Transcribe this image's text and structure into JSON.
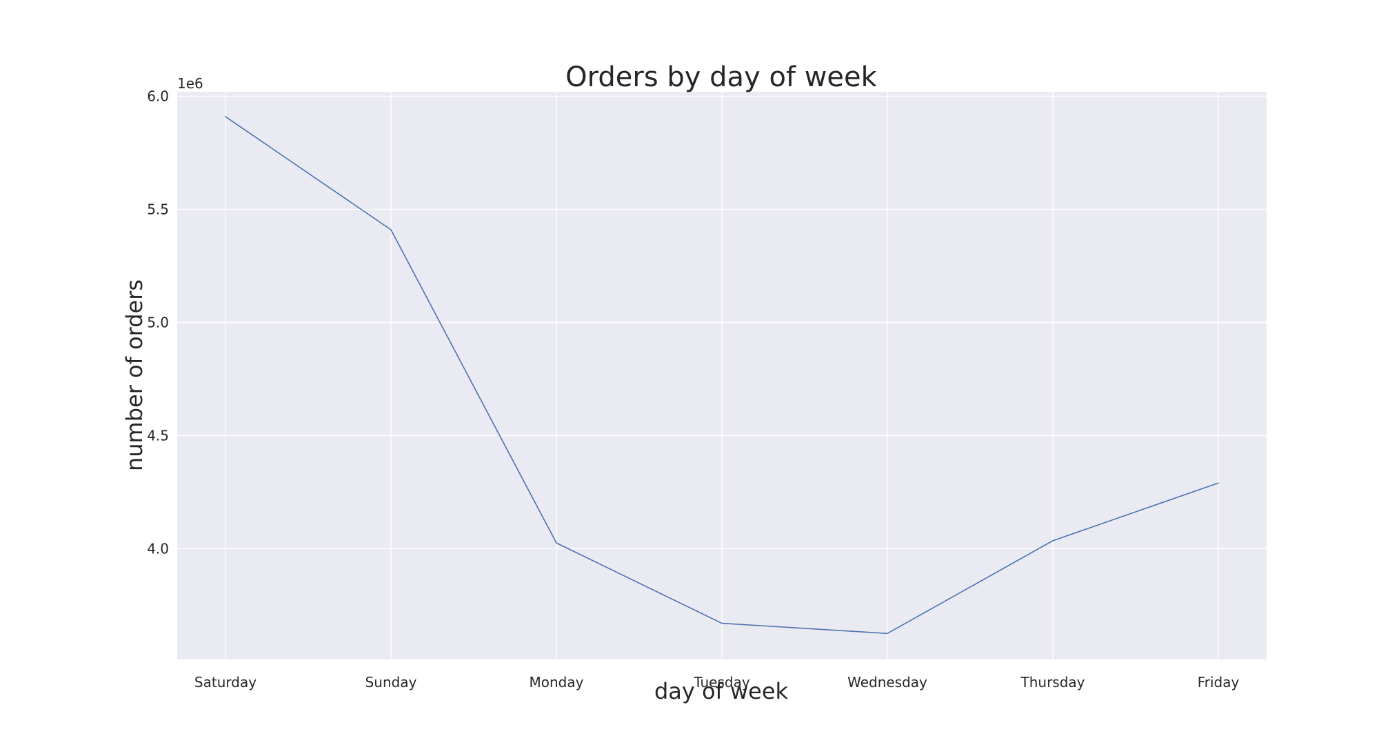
{
  "chart_data": {
    "type": "line",
    "title": "Orders by day of week",
    "xlabel": "day of week",
    "ylabel": "number of orders",
    "y_offset_label": "1e6",
    "categories": [
      "Saturday",
      "Sunday",
      "Monday",
      "Tuesday",
      "Wednesday",
      "Thursday",
      "Friday"
    ],
    "series": [
      {
        "values": [
          5910000,
          5410000,
          4025000,
          3670000,
          3625000,
          4035000,
          4290000
        ]
      }
    ],
    "ylim": [
      3510000,
      6020000
    ],
    "y_ticks": [
      4000000,
      4500000,
      5000000,
      5500000,
      6000000
    ],
    "y_tick_labels": [
      "4.0",
      "4.5",
      "5.0",
      "5.5",
      "6.0"
    ],
    "grid": true,
    "legend": "none",
    "colors": {
      "plot_background": "#EAEAF2",
      "grid": "#FFFFFF",
      "line": "#4C72B0",
      "text": "#262626"
    }
  }
}
